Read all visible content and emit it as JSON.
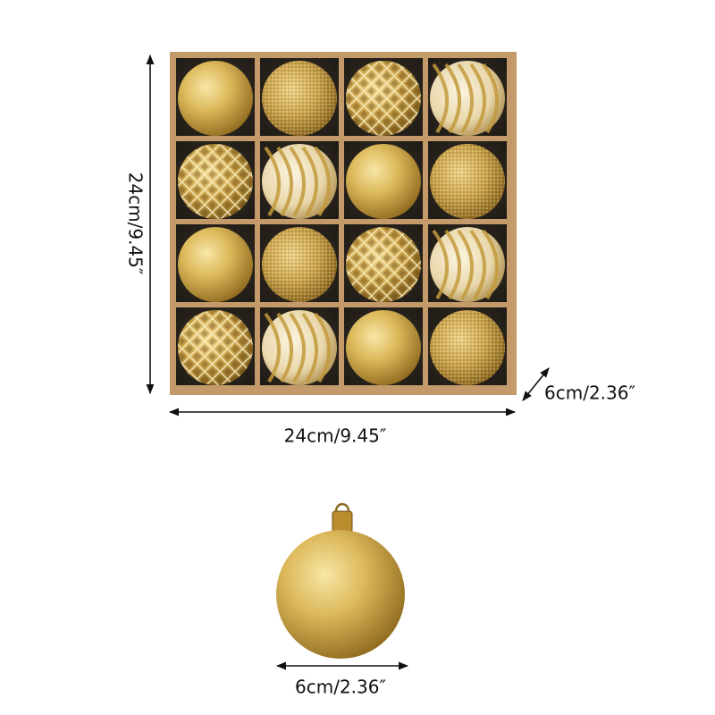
{
  "dimensions": {
    "height": "24cm/9.45″",
    "depth": "6cm/2.36″",
    "width": "24cm/9.45″",
    "ball_diameter": "6cm/2.36″"
  }
}
